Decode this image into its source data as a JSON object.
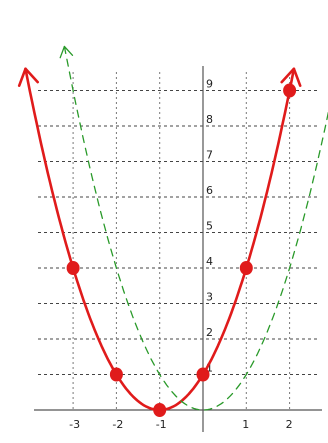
{
  "chart_data": {
    "type": "line",
    "xlim": [
      -4,
      3
    ],
    "ylim": [
      0,
      10
    ],
    "grid": true,
    "x_ticks": [
      {
        "value": -3,
        "label": "-3"
      },
      {
        "value": -2,
        "label": "-2"
      },
      {
        "value": -1,
        "label": "-1"
      },
      {
        "value": 1,
        "label": "1"
      },
      {
        "value": 2,
        "label": "2"
      }
    ],
    "y_ticks": [
      {
        "value": 1,
        "label": "1"
      },
      {
        "value": 2,
        "label": "2"
      },
      {
        "value": 3,
        "label": "3"
      },
      {
        "value": 4,
        "label": "4"
      },
      {
        "value": 5,
        "label": "5"
      },
      {
        "value": 6,
        "label": "6"
      },
      {
        "value": 7,
        "label": "7"
      },
      {
        "value": 8,
        "label": "8"
      },
      {
        "value": 9,
        "label": "9"
      }
    ],
    "series": [
      {
        "style": "solid",
        "color": "#e01b1b",
        "function": "(x+1)^2",
        "x_range": [
          -4.1,
          2.1
        ],
        "arrows": true,
        "points": [
          {
            "x": -3,
            "y": 4
          },
          {
            "x": -2,
            "y": 1
          },
          {
            "x": -1,
            "y": 0
          },
          {
            "x": 0,
            "y": 1
          },
          {
            "x": 1,
            "y": 4
          },
          {
            "x": 2,
            "y": 9
          }
        ]
      },
      {
        "style": "dashed",
        "color": "#2a9a2a",
        "function": "x^2",
        "x_range": [
          -3.2,
          3.1
        ],
        "arrows": true,
        "points": []
      }
    ]
  }
}
